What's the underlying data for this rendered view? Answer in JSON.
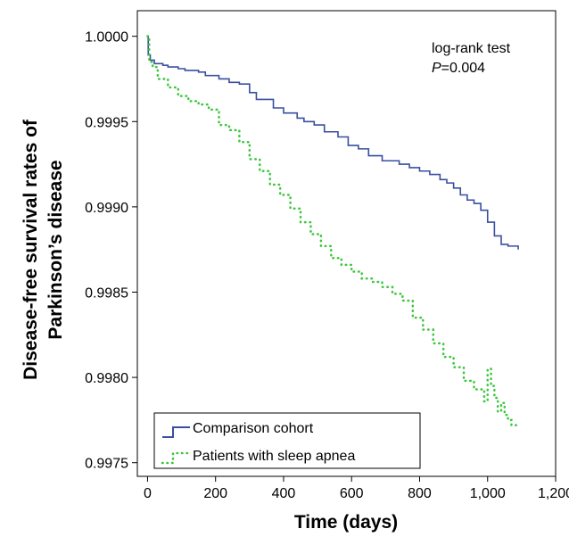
{
  "chart_data": {
    "type": "line",
    "step": true,
    "xlabel": "Time (days)",
    "ylabel_lines": [
      "Disease-free survival rates of",
      "Parkinson’s disease"
    ],
    "xlim": [
      -30,
      1200
    ],
    "ylim": [
      0.99742,
      1.00015
    ],
    "x_ticks": [
      0,
      200,
      400,
      600,
      800,
      1000,
      1200
    ],
    "x_tick_labels": [
      "0",
      "200",
      "400",
      "600",
      "800",
      "1,000",
      "1,200"
    ],
    "y_ticks": [
      0.9975,
      0.998,
      0.9985,
      0.999,
      0.9995,
      1.0
    ],
    "y_tick_labels": [
      "0.9975",
      "0.9980",
      "0.9985",
      "0.9990",
      "0.9995",
      "1.0000"
    ],
    "grid": false,
    "legend_position": "bottom-left",
    "annotation": {
      "line1": "log-rank test",
      "line2_italic": "P",
      "line2_rest": "=0.004"
    },
    "series": [
      {
        "name": "Comparison cohort",
        "color": "#3a4fa0",
        "dash": "solid",
        "x": [
          0,
          2,
          8,
          20,
          45,
          60,
          90,
          110,
          130,
          150,
          170,
          210,
          240,
          270,
          300,
          320,
          370,
          400,
          440,
          460,
          490,
          520,
          560,
          590,
          620,
          650,
          690,
          740,
          770,
          800,
          830,
          860,
          880,
          900,
          920,
          940,
          960,
          980,
          1000,
          1020,
          1040,
          1060,
          1090
        ],
        "y": [
          1.0,
          0.99989,
          0.99986,
          0.99984,
          0.99983,
          0.99982,
          0.99981,
          0.9998,
          0.9998,
          0.99979,
          0.99977,
          0.99975,
          0.99973,
          0.99972,
          0.99967,
          0.99963,
          0.99958,
          0.99955,
          0.99952,
          0.9995,
          0.99948,
          0.99944,
          0.99941,
          0.99936,
          0.99934,
          0.9993,
          0.99927,
          0.99925,
          0.99923,
          0.99921,
          0.99919,
          0.99916,
          0.99914,
          0.99911,
          0.99907,
          0.99904,
          0.99902,
          0.99898,
          0.99891,
          0.99883,
          0.99878,
          0.99877,
          0.99875
        ]
      },
      {
        "name": "Patients with sleep apnea",
        "color": "#3cc63c",
        "dash": "dotted",
        "x": [
          0,
          5,
          15,
          30,
          60,
          90,
          120,
          150,
          180,
          210,
          240,
          270,
          300,
          330,
          360,
          390,
          420,
          450,
          480,
          510,
          540,
          570,
          600,
          630,
          660,
          690,
          720,
          750,
          780,
          810,
          840,
          870,
          900,
          930,
          960,
          990,
          1000,
          1010,
          1020,
          1030,
          1040,
          1050,
          1060,
          1070,
          1085
        ],
        "y": [
          1.0,
          0.99985,
          0.99982,
          0.99975,
          0.9997,
          0.99965,
          0.99962,
          0.9996,
          0.99957,
          0.99948,
          0.99945,
          0.99938,
          0.99928,
          0.99921,
          0.99913,
          0.99907,
          0.99899,
          0.99891,
          0.99884,
          0.99877,
          0.9987,
          0.99866,
          0.99862,
          0.99858,
          0.99856,
          0.99853,
          0.99849,
          0.99845,
          0.99835,
          0.99828,
          0.9982,
          0.99812,
          0.99806,
          0.99798,
          0.99793,
          0.99786,
          0.99805,
          0.99795,
          0.99788,
          0.9978,
          0.99785,
          0.99778,
          0.99775,
          0.99772,
          0.99772
        ]
      }
    ]
  }
}
